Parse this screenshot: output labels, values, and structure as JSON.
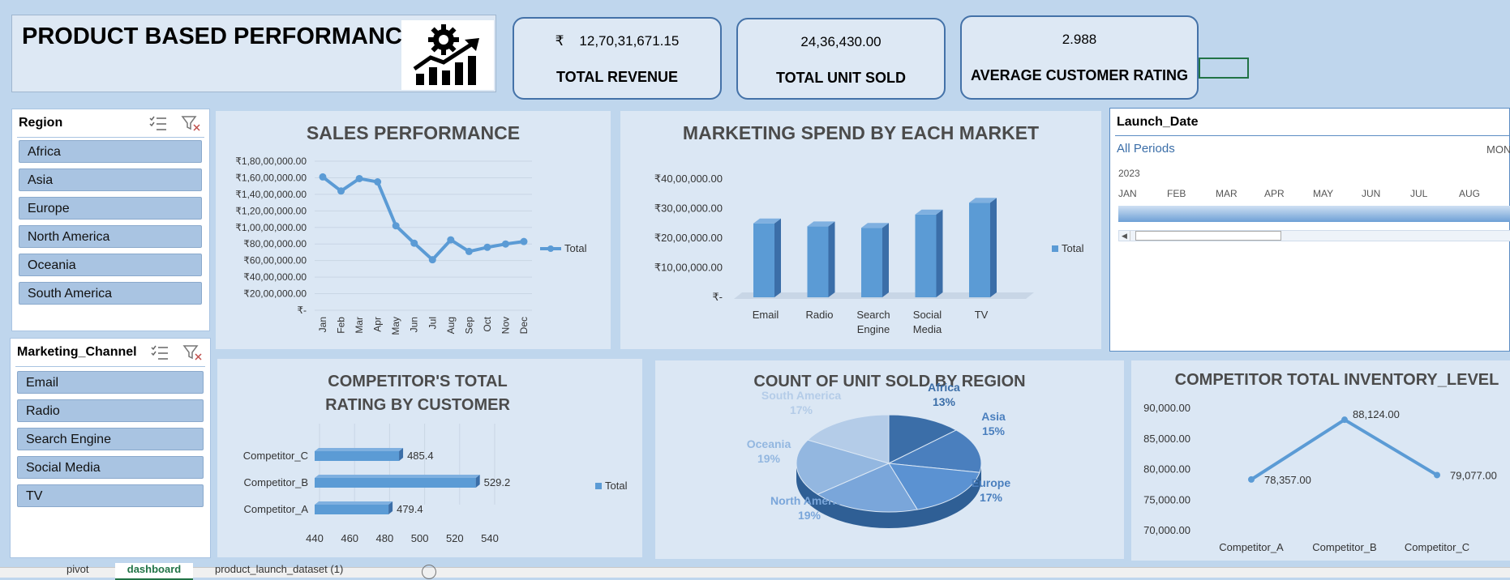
{
  "header": {
    "title": "PRODUCT BASED PERFORMANCE",
    "logo_icon": "gear-growth-chart-icon"
  },
  "kpis": [
    {
      "currency": "₹",
      "value": "12,70,31,671.15",
      "label": "TOTAL REVENUE"
    },
    {
      "value": "24,36,430.00",
      "label": "TOTAL UNIT SOLD"
    },
    {
      "value": "2.988",
      "label": "AVERAGE CUSTOMER RATING"
    }
  ],
  "slicers": {
    "region": {
      "title": "Region",
      "items": [
        "Africa",
        "Asia",
        "Europe",
        "North America",
        "Oceania",
        "South America"
      ]
    },
    "channel": {
      "title": "Marketing_Channel",
      "items": [
        "Email",
        "Radio",
        "Search Engine",
        "Social Media",
        "TV"
      ]
    }
  },
  "timeline": {
    "title": "Launch_Date",
    "period": "All Periods",
    "level": "MON",
    "year": "2023",
    "months": [
      "JAN",
      "FEB",
      "MAR",
      "APR",
      "MAY",
      "JUN",
      "JUL",
      "AUG"
    ]
  },
  "colors": {
    "accent": "#5b9bd5",
    "dark_accent": "#3b6ea8",
    "background": "#bfd6ed",
    "panel": "#dbe7f4"
  },
  "chart_data": [
    {
      "id": "sales",
      "type": "line",
      "title": "SALES PERFORMANCE",
      "categories": [
        "Jan",
        "Feb",
        "Mar",
        "Apr",
        "May",
        "Jun",
        "Jul",
        "Aug",
        "Sep",
        "Oct",
        "Nov",
        "Dec"
      ],
      "series": [
        {
          "name": "Total",
          "values": [
            161000000,
            144000000,
            159000000,
            155000000,
            102000000,
            81000000,
            61000000,
            85000000,
            71000000,
            76000000,
            80000000,
            83000000
          ]
        }
      ],
      "ylim": [
        0,
        180000000
      ],
      "yticks": [
        "₹1,80,00,000.00",
        "₹1,60,00,000.00",
        "₹1,40,00,000.00",
        "₹1,20,00,000.00",
        "₹1,00,00,000.00",
        "₹80,00,000.00",
        "₹60,00,000.00",
        "₹40,00,000.00",
        "₹20,00,000.00",
        "₹-"
      ],
      "legend": "right"
    },
    {
      "id": "marketing",
      "type": "bar",
      "title": "MARKETING SPEND BY EACH MARKET",
      "categories": [
        "Email",
        "Radio",
        "Search Engine",
        "Social Media",
        "TV"
      ],
      "series": [
        {
          "name": "Total",
          "values": [
            2500000,
            2400000,
            2350000,
            2800000,
            3200000
          ]
        }
      ],
      "ylim": [
        0,
        4000000
      ],
      "yticks": [
        "₹40,00,000.00",
        "₹30,00,000.00",
        "₹20,00,000.00",
        "₹10,00,000.00",
        "₹-"
      ],
      "legend": "right"
    },
    {
      "id": "competitor_rating",
      "type": "bar",
      "title": "COMPETITOR'S TOTAL RATING BY CUSTOMER",
      "categories": [
        "Competitor_C",
        "Competitor_B",
        "Competitor_A"
      ],
      "series": [
        {
          "name": "Total",
          "values": [
            485.4,
            529.2,
            479.4
          ]
        }
      ],
      "labels": [
        "485.4",
        "529.2",
        "479.4"
      ],
      "xlim": [
        440,
        540
      ],
      "xticks": [
        "440",
        "460",
        "480",
        "500",
        "520",
        "540"
      ],
      "legend": "right"
    },
    {
      "id": "units_region",
      "type": "pie",
      "title": "COUNT OF UNIT SOLD BY REGION",
      "slices": [
        {
          "label": "Africa",
          "pct": "13%",
          "value": 13
        },
        {
          "label": "Asia",
          "pct": "15%",
          "value": 15
        },
        {
          "label": "Europe",
          "pct": "17%",
          "value": 17
        },
        {
          "label": "North America",
          "pct": "19%",
          "value": 19
        },
        {
          "label": "Oceania",
          "pct": "19%",
          "value": 19
        },
        {
          "label": "South America",
          "pct": "17%",
          "value": 17
        }
      ]
    },
    {
      "id": "inventory",
      "type": "line",
      "title": "COMPETITOR TOTAL INVENTORY_LEVEL",
      "categories": [
        "Competitor_A",
        "Competitor_B",
        "Competitor_C"
      ],
      "series": [
        {
          "name": "Total",
          "values": [
            78357,
            88124,
            79077
          ]
        }
      ],
      "labels": [
        "78,357.00",
        "88,124.00",
        "79,077.00"
      ],
      "ylim": [
        70000,
        90000
      ],
      "yticks": [
        "90,000.00",
        "85,000.00",
        "80,000.00",
        "75,000.00",
        "70,000.00"
      ]
    }
  ],
  "sheet_tabs": [
    "pivot",
    "dashboard",
    "product_launch_dataset (1)"
  ]
}
